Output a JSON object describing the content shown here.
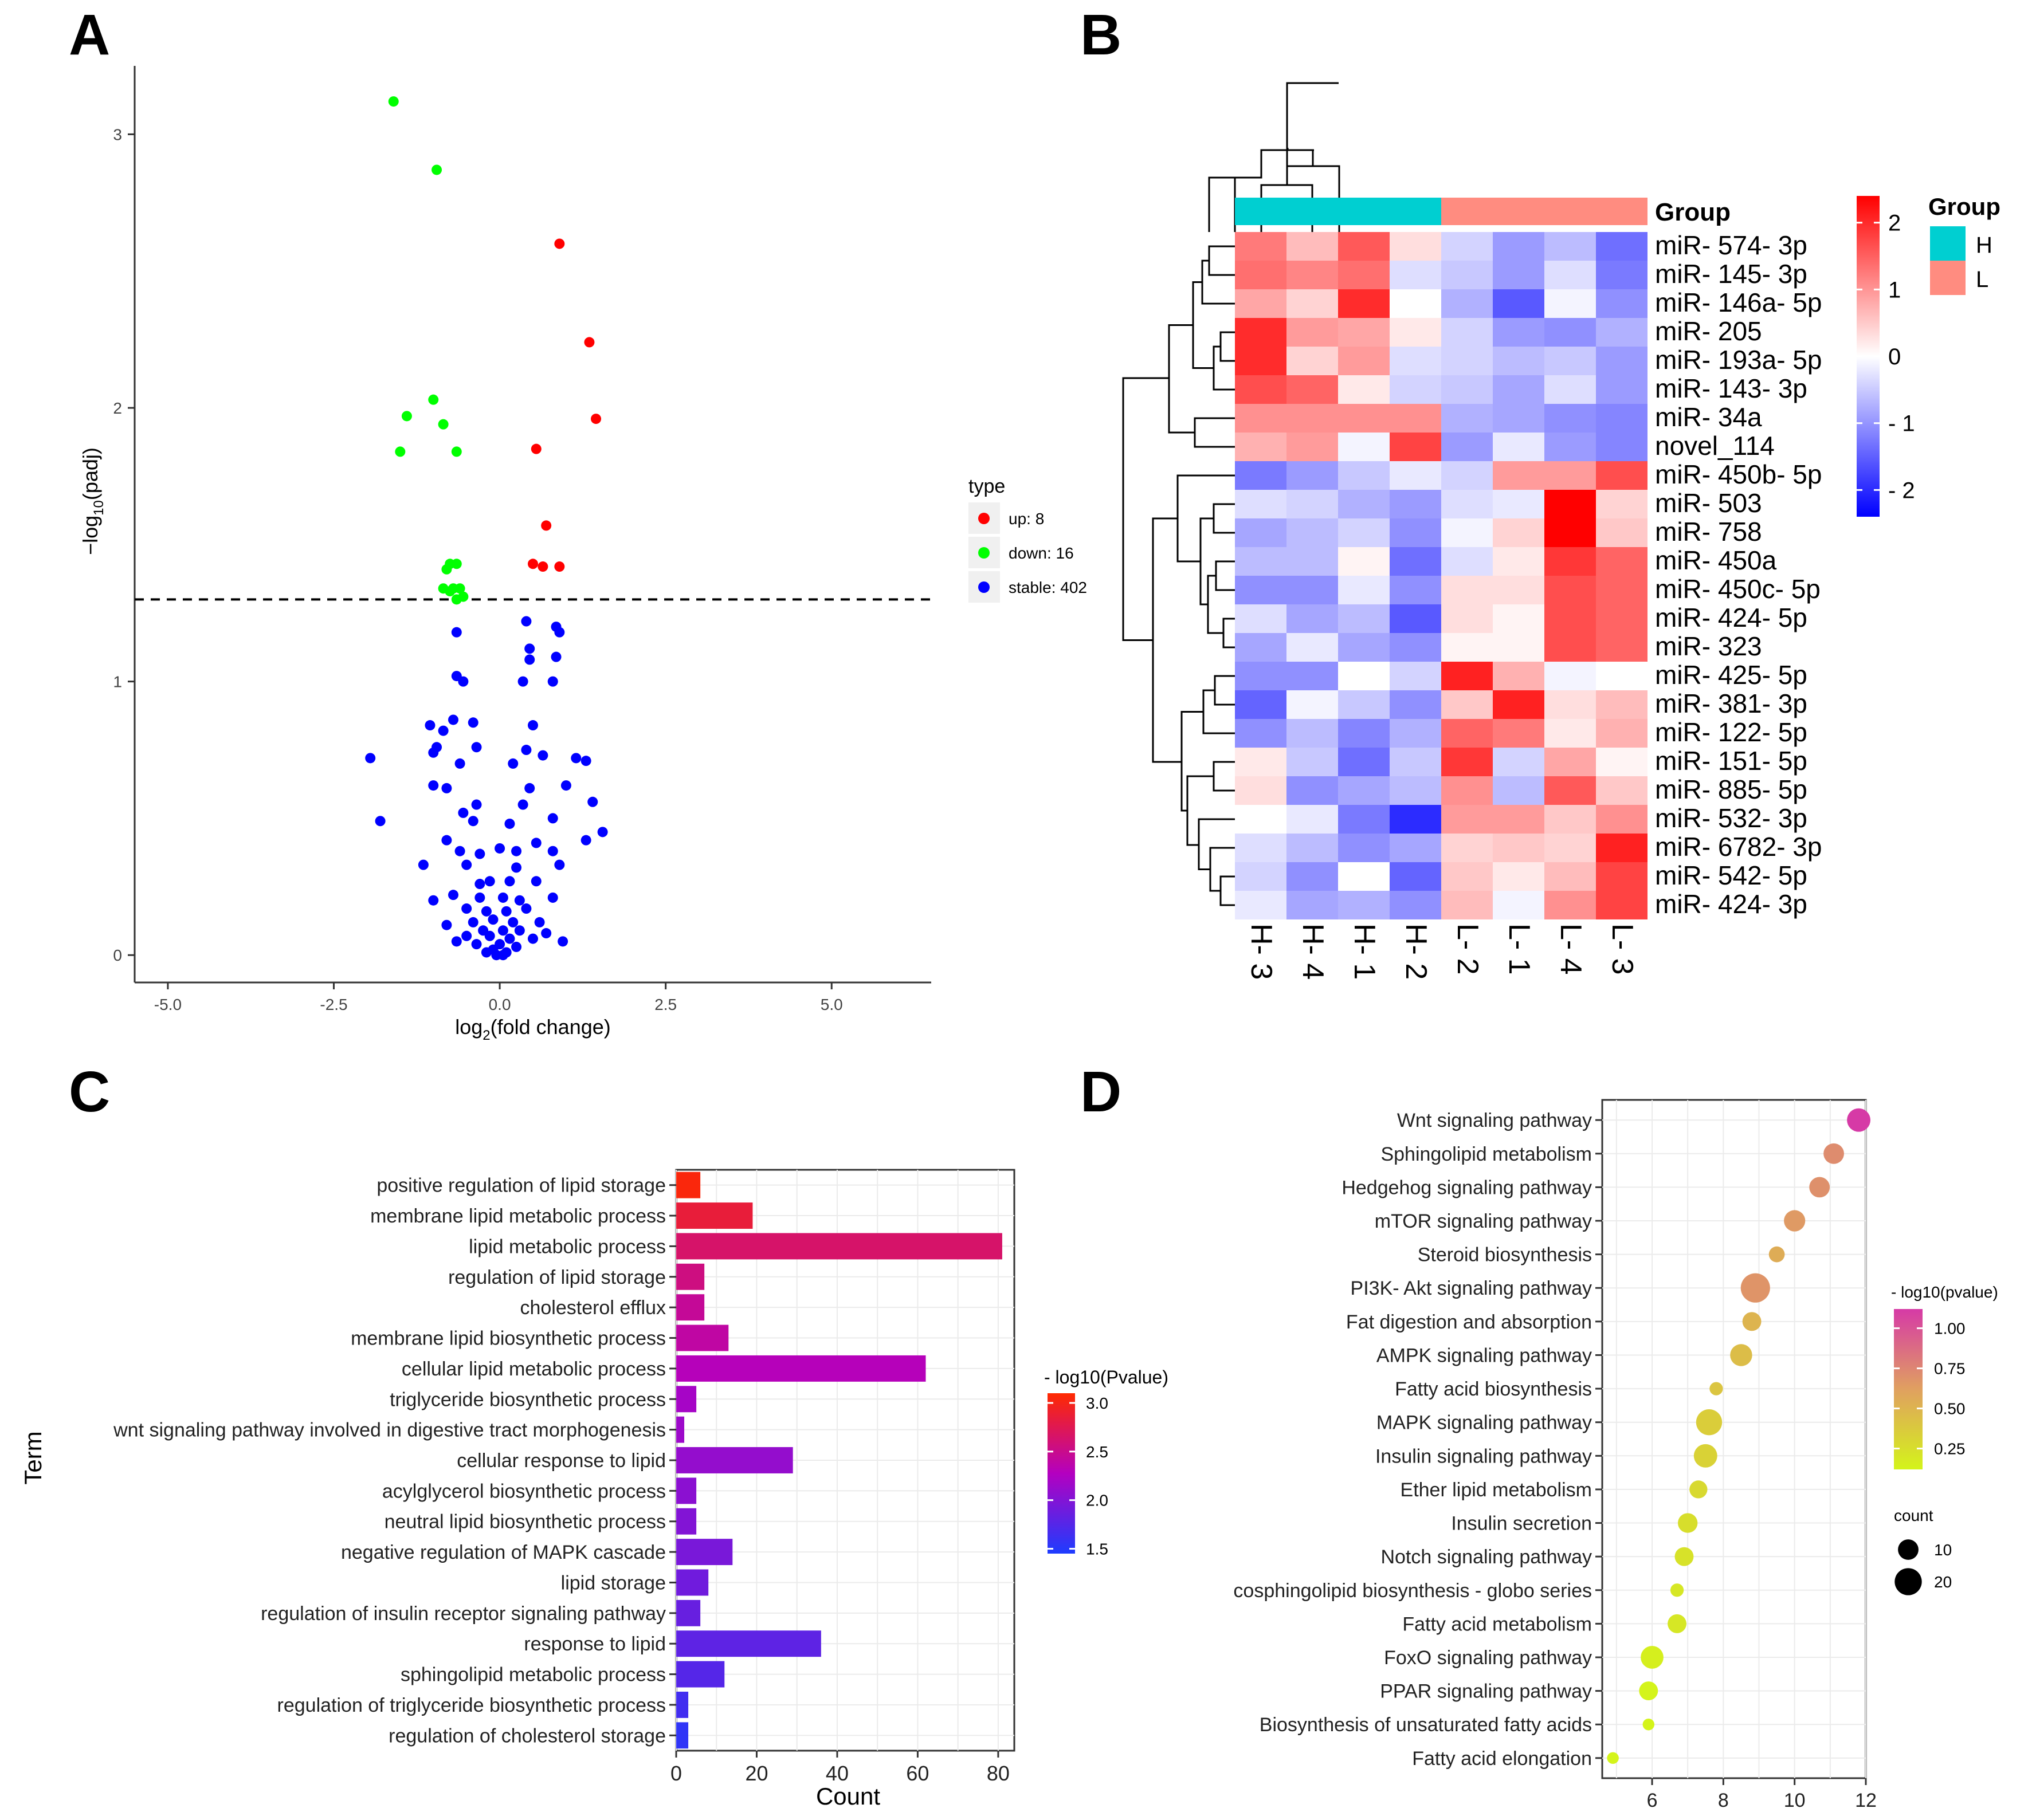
{
  "panel_labels": [
    "A",
    "B",
    "C",
    "D"
  ],
  "chart_data": [
    {
      "panel": "A",
      "type": "scatter",
      "title": "",
      "xlabel_main": "log",
      "xlabel_sub": "2",
      "xlabel_rest": "(fold change)",
      "ylabel_main": "−log",
      "ylabel_sub": "10",
      "ylabel_rest": "(padj)",
      "xlim": [
        -5.5,
        6.5
      ],
      "ylim": [
        -0.1,
        3.25
      ],
      "xticks": [
        -5,
        -2.5,
        0,
        2.5,
        5
      ],
      "xtick_labels": [
        "-5.0",
        "-2.5",
        "0.0",
        "2.5",
        "5.0"
      ],
      "yticks": [
        0,
        1,
        2,
        3
      ],
      "ytick_labels": [
        "0",
        "1",
        "2",
        "3"
      ],
      "threshold_y": 1.3,
      "legend": {
        "title": "type",
        "position": "right",
        "entries": [
          {
            "label": "up: 8",
            "color": "#ff0000"
          },
          {
            "label": "down: 16",
            "color": "#00ff00"
          },
          {
            "label": "stable: 402",
            "color": "#0000ff"
          }
        ]
      },
      "series": [
        {
          "name": "up",
          "color": "#ff0000",
          "points": [
            [
              0.9,
              2.6
            ],
            [
              1.35,
              2.24
            ],
            [
              1.45,
              1.96
            ],
            [
              0.55,
              1.85
            ],
            [
              0.7,
              1.57
            ],
            [
              0.5,
              1.43
            ],
            [
              0.65,
              1.42
            ],
            [
              0.9,
              1.42
            ]
          ]
        },
        {
          "name": "down",
          "color": "#00ff00",
          "points": [
            [
              -1.6,
              3.12
            ],
            [
              -0.95,
              2.87
            ],
            [
              -1.0,
              2.03
            ],
            [
              -1.4,
              1.97
            ],
            [
              -0.85,
              1.94
            ],
            [
              -1.5,
              1.84
            ],
            [
              -0.65,
              1.84
            ],
            [
              -0.75,
              1.43
            ],
            [
              -0.65,
              1.43
            ],
            [
              -0.8,
              1.41
            ],
            [
              -0.85,
              1.34
            ],
            [
              -0.7,
              1.34
            ],
            [
              -0.6,
              1.34
            ],
            [
              -0.75,
              1.33
            ],
            [
              -0.55,
              1.31
            ],
            [
              -0.65,
              1.3
            ]
          ]
        },
        {
          "name": "stable",
          "color": "#0000ff",
          "points": [
            [
              0.4,
              1.22
            ],
            [
              0.85,
              1.2
            ],
            [
              0.45,
              1.12
            ],
            [
              -0.65,
              1.18
            ],
            [
              0.9,
              1.18
            ],
            [
              0.45,
              1.08
            ],
            [
              0.85,
              1.09
            ],
            [
              -0.65,
              1.02
            ],
            [
              -0.55,
              1.0
            ],
            [
              0.35,
              1.0
            ],
            [
              0.8,
              1.0
            ],
            [
              -0.7,
              0.86
            ],
            [
              -1.05,
              0.84
            ],
            [
              -0.85,
              0.82
            ],
            [
              -0.4,
              0.85
            ],
            [
              0.5,
              0.84
            ],
            [
              -0.95,
              0.76
            ],
            [
              -0.35,
              0.76
            ],
            [
              -1.0,
              0.74
            ],
            [
              0.4,
              0.75
            ],
            [
              0.65,
              0.73
            ],
            [
              1.15,
              0.72
            ],
            [
              -1.95,
              0.72
            ],
            [
              1.3,
              0.71
            ],
            [
              -0.6,
              0.7
            ],
            [
              0.2,
              0.7
            ],
            [
              -0.8,
              0.61
            ],
            [
              -1.0,
              0.62
            ],
            [
              0.45,
              0.61
            ],
            [
              1.0,
              0.62
            ],
            [
              -0.35,
              0.55
            ],
            [
              0.35,
              0.55
            ],
            [
              -0.55,
              0.52
            ],
            [
              0.8,
              0.5
            ],
            [
              1.4,
              0.56
            ],
            [
              -1.8,
              0.49
            ],
            [
              -0.4,
              0.49
            ],
            [
              0.15,
              0.48
            ],
            [
              -0.8,
              0.42
            ],
            [
              0.55,
              0.41
            ],
            [
              1.3,
              0.42
            ],
            [
              1.55,
              0.45
            ],
            [
              -0.6,
              0.38
            ],
            [
              -0.3,
              0.37
            ],
            [
              0.0,
              0.39
            ],
            [
              0.25,
              0.38
            ],
            [
              0.8,
              0.38
            ],
            [
              -1.15,
              0.33
            ],
            [
              -0.5,
              0.33
            ],
            [
              0.25,
              0.32
            ],
            [
              0.9,
              0.33
            ],
            [
              -0.15,
              0.27
            ],
            [
              0.15,
              0.27
            ],
            [
              -0.3,
              0.26
            ],
            [
              0.55,
              0.27
            ],
            [
              -0.7,
              0.22
            ],
            [
              -0.3,
              0.21
            ],
            [
              0.05,
              0.21
            ],
            [
              0.3,
              0.2
            ],
            [
              -1.0,
              0.2
            ],
            [
              0.8,
              0.21
            ],
            [
              -0.5,
              0.17
            ],
            [
              -0.2,
              0.16
            ],
            [
              0.1,
              0.16
            ],
            [
              0.4,
              0.17
            ],
            [
              -0.1,
              0.13
            ],
            [
              0.2,
              0.12
            ],
            [
              -0.4,
              0.12
            ],
            [
              0.6,
              0.12
            ],
            [
              -0.8,
              0.11
            ],
            [
              -0.25,
              0.09
            ],
            [
              0.05,
              0.09
            ],
            [
              0.3,
              0.09
            ],
            [
              -0.15,
              0.07
            ],
            [
              0.15,
              0.06
            ],
            [
              -0.5,
              0.07
            ],
            [
              0.5,
              0.06
            ],
            [
              -0.35,
              0.04
            ],
            [
              0.0,
              0.04
            ],
            [
              0.25,
              0.03
            ],
            [
              -0.1,
              0.02
            ],
            [
              0.1,
              0.01
            ],
            [
              -0.05,
              0.0
            ],
            [
              0.05,
              0.0
            ],
            [
              -0.2,
              0.01
            ],
            [
              0.95,
              0.05
            ],
            [
              -0.65,
              0.05
            ],
            [
              0.7,
              0.08
            ]
          ]
        }
      ]
    },
    {
      "panel": "B",
      "type": "heatmap",
      "columns": [
        "H-3",
        "H-4",
        "H-1",
        "H-2",
        "L-2",
        "L-1",
        "L-4",
        "L-3"
      ],
      "groups": [
        "H",
        "H",
        "H",
        "H",
        "L",
        "L",
        "L",
        "L"
      ],
      "rows": [
        "miR-574-3p",
        "miR-145-3p",
        "miR-146a-5p",
        "miR-205",
        "miR-193a-5p",
        "miR-143-3p",
        "miR-34a",
        "novel_114",
        "miR-450b-5p",
        "miR-503",
        "miR-758",
        "miR-450a",
        "miR-450c-5p",
        "miR-424-5p",
        "miR-323",
        "miR-425-5p",
        "miR-381-3p",
        "miR-122-5p",
        "miR-151-5p",
        "miR-885-5p",
        "miR-532-3p",
        "miR-6782-3p",
        "miR-542-5p",
        "miR-424-3p"
      ],
      "values": [
        [
          1.2,
          0.6,
          1.5,
          0.3,
          -0.4,
          -0.9,
          -0.6,
          -1.3
        ],
        [
          1.3,
          1.1,
          1.3,
          -0.3,
          -0.5,
          -0.9,
          -0.3,
          -1.2
        ],
        [
          0.8,
          0.4,
          1.9,
          0.0,
          -0.7,
          -1.5,
          -0.1,
          -1.0
        ],
        [
          1.9,
          0.9,
          0.8,
          0.2,
          -0.4,
          -0.9,
          -1.0,
          -0.7
        ],
        [
          1.9,
          0.4,
          0.9,
          -0.3,
          -0.4,
          -0.6,
          -0.5,
          -0.9
        ],
        [
          1.6,
          1.4,
          0.2,
          -0.4,
          -0.5,
          -0.8,
          -0.3,
          -0.9
        ],
        [
          1.0,
          1.0,
          1.0,
          1.0,
          -0.7,
          -0.8,
          -1.0,
          -1.1
        ],
        [
          0.7,
          0.9,
          -0.1,
          1.7,
          -0.9,
          -0.2,
          -0.9,
          -1.1
        ],
        [
          -1.2,
          -0.9,
          -0.5,
          -0.2,
          -0.4,
          0.9,
          0.9,
          1.6
        ],
        [
          -0.3,
          -0.4,
          -0.7,
          -0.9,
          -0.3,
          -0.2,
          2.3,
          0.4
        ],
        [
          -0.8,
          -0.6,
          -0.4,
          -1.0,
          -0.1,
          0.4,
          2.3,
          0.5
        ],
        [
          -0.6,
          -0.6,
          0.1,
          -1.3,
          -0.3,
          0.2,
          1.8,
          1.4
        ],
        [
          -1.0,
          -1.0,
          -0.2,
          -1.0,
          0.3,
          0.3,
          1.6,
          1.4
        ],
        [
          -0.3,
          -0.8,
          -0.6,
          -1.5,
          0.3,
          0.1,
          1.6,
          1.4
        ],
        [
          -0.8,
          -0.2,
          -0.8,
          -1.0,
          0.1,
          0.1,
          1.6,
          1.4
        ],
        [
          -1.0,
          -1.0,
          0.0,
          -0.4,
          2.0,
          0.7,
          -0.1,
          0.0
        ],
        [
          -1.4,
          -0.1,
          -0.5,
          -1.0,
          0.5,
          2.0,
          0.3,
          0.6
        ],
        [
          -1.0,
          -0.6,
          -1.1,
          -0.7,
          1.4,
          1.2,
          0.2,
          0.7
        ],
        [
          0.2,
          -0.5,
          -1.3,
          -0.5,
          1.8,
          -0.4,
          0.8,
          0.1
        ],
        [
          0.3,
          -1.0,
          -0.8,
          -0.6,
          1.0,
          -0.6,
          1.5,
          0.5
        ],
        [
          0.0,
          -0.2,
          -1.2,
          -1.9,
          0.9,
          0.9,
          0.5,
          1.0
        ],
        [
          -0.3,
          -0.6,
          -1.0,
          -0.8,
          0.4,
          0.5,
          0.4,
          2.0
        ],
        [
          -0.4,
          -1.0,
          0.0,
          -1.4,
          0.5,
          0.2,
          0.6,
          1.7
        ],
        [
          -0.2,
          -0.8,
          -0.7,
          -1.0,
          0.6,
          -0.1,
          1.0,
          1.7
        ]
      ],
      "group_label": "Group",
      "group_colors": {
        "H": "#00cfd1",
        "L": "#ff8c80"
      },
      "legend": {
        "title": "Group",
        "entries": [
          {
            "label": "H",
            "color": "#00cfd1"
          },
          {
            "label": "L",
            "color": "#ff8c80"
          }
        ],
        "colorbar_ticks": [
          2,
          1,
          0,
          -1,
          -2
        ],
        "colorbar_tick_labels": [
          "2",
          "1",
          "0",
          "- 1",
          "- 2"
        ],
        "low_color": "#0000ff",
        "mid_color": "#ffffff",
        "high_color": "#ff0000"
      }
    },
    {
      "panel": "C",
      "type": "bar",
      "orientation": "horizontal",
      "xlabel": "Count",
      "ylabel": "Term",
      "xlim": [
        0,
        84
      ],
      "xticks": [
        0,
        20,
        40,
        60,
        80
      ],
      "xtick_labels": [
        "0",
        "20",
        "40",
        "60",
        "80"
      ],
      "categories": [
        "positive regulation of lipid storage",
        "membrane lipid metabolic process",
        "lipid metabolic process",
        "regulation of lipid storage",
        "cholesterol efflux",
        "membrane lipid biosynthetic process",
        "cellular lipid metabolic process",
        "triglyceride biosynthetic process",
        "wnt signaling pathway involved in digestive tract morphogenesis",
        "cellular response to lipid",
        "acylglycerol biosynthetic process",
        "neutral lipid biosynthetic process",
        "negative regulation of MAPK cascade",
        "lipid storage",
        "regulation of insulin receptor signaling pathway",
        "response to lipid",
        "sphingolipid metabolic process",
        "regulation of triglyceride biosynthetic process",
        "regulation of cholesterol storage"
      ],
      "values": [
        6,
        19,
        81,
        7,
        7,
        13,
        62,
        5,
        2,
        29,
        5,
        5,
        14,
        8,
        6,
        36,
        12,
        3,
        3
      ],
      "color_values": [
        3.05,
        2.85,
        2.65,
        2.55,
        2.45,
        2.4,
        2.3,
        2.2,
        2.15,
        2.1,
        2.05,
        2.0,
        1.95,
        1.9,
        1.85,
        1.8,
        1.75,
        1.65,
        1.55
      ],
      "legend": {
        "title": "- log10(Pvalue)",
        "ticks": [
          3.0,
          2.5,
          2.0,
          1.5
        ],
        "tick_labels": [
          "3.0",
          "2.5",
          "2.0",
          "1.5"
        ],
        "range": [
          1.45,
          3.1
        ],
        "low_color": "#1e3cff",
        "mid_color": "#b400c0",
        "high_color": "#ff2a00"
      }
    },
    {
      "panel": "D",
      "type": "scatter",
      "subtype": "bubble",
      "xlim": [
        4.6,
        12.0
      ],
      "xticks": [
        6,
        8,
        10,
        12
      ],
      "xtick_labels": [
        "6",
        "8",
        "10",
        "12"
      ],
      "categories": [
        "Wnt signaling pathway",
        "Sphingolipid metabolism",
        "Hedgehog signaling pathway",
        "mTOR signaling pathway",
        "Steroid biosynthesis",
        "PI3K- Akt signaling pathway",
        "Fat digestion and absorption",
        "AMPK signaling pathway",
        "Fatty acid biosynthesis",
        "MAPK signaling pathway",
        "Insulin signaling pathway",
        "Ether lipid metabolism",
        "Insulin secretion",
        "Notch signaling pathway",
        "cosphingolipid biosynthesis -  globo series",
        "Fatty acid metabolism",
        "FoxO signaling pathway",
        "PPAR signaling pathway",
        "Biosynthesis of unsaturated fatty acids",
        "Fatty acid elongation"
      ],
      "x": [
        11.8,
        11.1,
        10.7,
        10.0,
        9.5,
        8.9,
        8.8,
        8.5,
        7.8,
        7.6,
        7.5,
        7.3,
        7.0,
        6.9,
        6.7,
        6.7,
        6.0,
        5.9,
        5.9,
        4.9
      ],
      "size": [
        14,
        10,
        10,
        11,
        5,
        24,
        8,
        12,
        3,
        18,
        14,
        7,
        9,
        8,
        3,
        8,
        13,
        8,
        2,
        2
      ],
      "color": [
        1.15,
        0.72,
        0.7,
        0.65,
        0.55,
        0.68,
        0.5,
        0.45,
        0.4,
        0.35,
        0.32,
        0.28,
        0.25,
        0.23,
        0.2,
        0.2,
        0.15,
        0.12,
        0.1,
        0.08
      ],
      "legend": {
        "color_title": "- log10(pvalue)",
        "color_ticks": [
          1.0,
          0.75,
          0.5,
          0.25
        ],
        "color_tick_labels": [
          "1.00",
          "0.75",
          "0.50",
          "0.25"
        ],
        "color_range": [
          0.12,
          1.12
        ],
        "low_color": "#d4f41a",
        "mid_color": "#e0a060",
        "high_color": "#d63aa6",
        "size_title": "count",
        "size_entries": [
          10,
          20
        ],
        "size_labels": [
          "10",
          "20"
        ]
      }
    }
  ]
}
